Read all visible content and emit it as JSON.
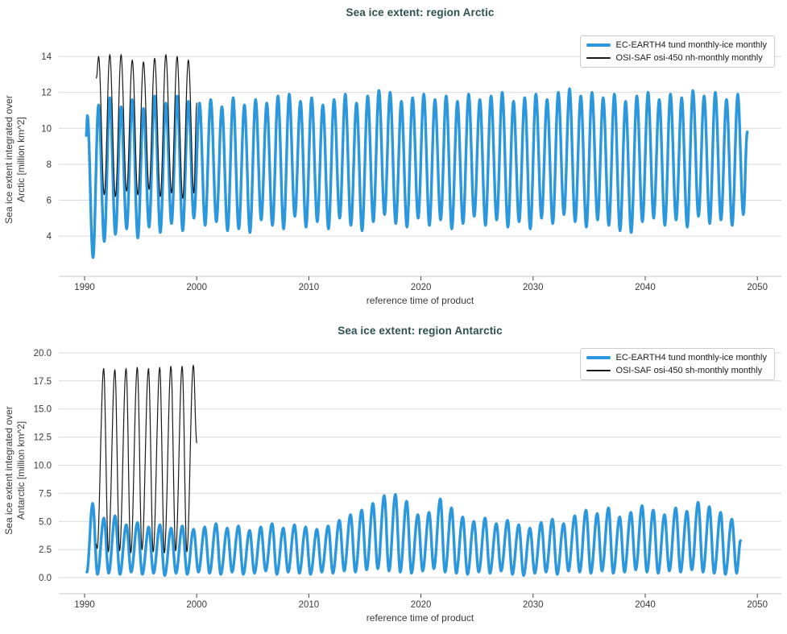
{
  "colors": {
    "title": "#2e5151",
    "tick_label": "#3a3a3a",
    "grid": "#d9d9d9",
    "axis_line": "#c9c9c9",
    "tick_mark": "#444444",
    "legend_border": "#cccccc",
    "blue_series": "#2b97dc",
    "black_series": "#1a1a1a"
  },
  "chart_data": [
    {
      "type": "line",
      "title": "Sea ice extent: region Arctic",
      "xlabel": "reference time of product",
      "ylabel_lines": [
        "Sea ice extent integrated over",
        "Arctic [million km^2]"
      ],
      "grid": "horizontal",
      "legend_position": "top-right",
      "x_range": [
        1987.7,
        2052.14
      ],
      "y_range": [
        1.76,
        14.81
      ],
      "x_ticks": {
        "values": [
          1990,
          2000,
          2010,
          2020,
          2030,
          2040,
          2050
        ],
        "labels": [
          "1990",
          "2000",
          "2010",
          "2020",
          "2030",
          "2040",
          "2050"
        ]
      },
      "y_ticks": {
        "values": [
          4,
          6,
          8,
          10,
          12,
          14
        ],
        "labels": [
          "4",
          "6",
          "8",
          "10",
          "12",
          "14"
        ]
      },
      "series": [
        {
          "name": "EC-EARTH4 tund monthly-ice monthly",
          "color": "#2b97dc",
          "width": 3.4,
          "order": "max-min",
          "max_phase": 0.25,
          "min_phase": 0.75,
          "start_year": 1990,
          "start": [
            1990.15,
            9.6
          ],
          "end": [
            2049.1,
            9.8
          ],
          "annual_max": [
            10.7,
            11.3,
            11.7,
            11.2,
            11.6,
            11.1,
            11.8,
            11.4,
            11.8,
            11.5,
            11.4,
            11.6,
            11.2,
            11.7,
            11.3,
            11.6,
            11.4,
            11.8,
            11.9,
            11.5,
            11.7,
            11.3,
            11.6,
            11.9,
            11.4,
            11.8,
            12.1,
            12.0,
            11.5,
            11.7,
            11.9,
            11.6,
            11.8,
            11.5,
            11.9,
            11.6,
            11.8,
            12.0,
            11.5,
            11.7,
            11.9,
            11.6,
            12.0,
            12.2,
            11.8,
            12.0,
            11.7,
            11.9,
            11.5,
            11.8,
            12.0,
            11.6,
            11.9,
            11.7,
            12.1,
            11.8,
            12.0,
            11.6,
            11.9
          ],
          "annual_min": [
            2.8,
            3.7,
            4.1,
            4.4,
            3.9,
            4.5,
            4.2,
            4.7,
            4.3,
            5.0,
            4.6,
            4.8,
            4.3,
            4.4,
            4.2,
            4.9,
            4.6,
            4.4,
            5.1,
            4.5,
            4.8,
            4.4,
            5.0,
            4.6,
            4.3,
            4.8,
            5.2,
            4.7,
            4.5,
            5.0,
            4.6,
            4.9,
            4.4,
            4.7,
            5.1,
            4.6,
            4.9,
            4.5,
            4.8,
            4.4,
            5.0,
            4.7,
            5.2,
            4.8,
            4.5,
            4.9,
            4.6,
            4.3,
            4.2,
            4.8,
            5.0,
            4.6,
            4.9,
            4.5,
            5.1,
            4.7,
            4.9,
            4.6,
            5.2
          ]
        },
        {
          "name": "OSI-SAF osi-450 nh-monthly monthly",
          "color": "#1a1a1a",
          "width": 1.2,
          "order": "max-min",
          "max_phase": 0.25,
          "min_phase": 0.75,
          "start_year": 1991,
          "start": [
            1991.05,
            12.8
          ],
          "end": [
            2000.0,
            11.4
          ],
          "annual_max": [
            14.0,
            14.1,
            14.1,
            13.8,
            13.7,
            13.9,
            14.1,
            14.0,
            13.8
          ],
          "annual_min": [
            6.3,
            6.2,
            6.5,
            6.3,
            6.6,
            6.2,
            6.4,
            6.1,
            6.4
          ]
        }
      ]
    },
    {
      "type": "line",
      "title": "Sea ice extent: region Antarctic",
      "xlabel": "reference time of product",
      "ylabel_lines": [
        "Sea ice extent integrated over",
        "Antarctic [million km^2]"
      ],
      "grid": "horizontal",
      "legend_position": "top-right",
      "x_range": [
        1987.7,
        2052.14
      ],
      "y_range": [
        -1.43,
        20.57
      ],
      "x_ticks": {
        "values": [
          1990,
          2000,
          2010,
          2020,
          2030,
          2040,
          2050
        ],
        "labels": [
          "1990",
          "2000",
          "2010",
          "2020",
          "2030",
          "2040",
          "2050"
        ]
      },
      "y_ticks": {
        "values": [
          0,
          2.5,
          5,
          7.5,
          10,
          12.5,
          15,
          17.5,
          20
        ],
        "labels": [
          "0.0",
          "2.5",
          "5.0",
          "7.5",
          "10.0",
          "12.5",
          "15.0",
          "17.5",
          "20.0"
        ]
      },
      "series": [
        {
          "name": "EC-EARTH4 tund monthly-ice monthly",
          "color": "#2b97dc",
          "width": 3.4,
          "order": "min-max",
          "min_phase": 0.15,
          "max_phase": 0.72,
          "start_year": 1990,
          "start": [
            1990.2,
            0.5
          ],
          "end": [
            2048.5,
            3.3
          ],
          "annual_max": [
            6.6,
            5.3,
            5.5,
            4.7,
            4.9,
            4.5,
            4.7,
            4.4,
            4.6,
            4.3,
            4.5,
            4.8,
            4.4,
            4.6,
            4.2,
            4.5,
            4.8,
            4.4,
            4.7,
            4.5,
            4.3,
            4.6,
            5.1,
            5.6,
            6.0,
            6.6,
            7.3,
            7.4,
            6.8,
            5.6,
            5.8,
            7.0,
            6.2,
            5.4,
            5.0,
            5.3,
            4.8,
            5.1,
            4.7,
            4.4,
            4.9,
            5.2,
            4.8,
            5.5,
            6.0,
            5.7,
            6.2,
            5.4,
            5.8,
            6.4,
            6.0,
            5.6,
            6.2,
            5.9,
            6.7,
            6.3,
            5.8,
            5.2,
            4.6
          ],
          "annual_min": [
            0.9,
            0.3,
            0.4,
            0.3,
            0.5,
            0.3,
            0.4,
            0.2,
            0.4,
            0.3,
            0.5,
            0.4,
            0.3,
            0.5,
            0.3,
            0.4,
            0.6,
            0.3,
            0.5,
            0.4,
            0.3,
            0.5,
            0.4,
            0.6,
            0.5,
            0.7,
            0.8,
            0.6,
            0.5,
            0.4,
            0.6,
            0.8,
            0.5,
            0.4,
            0.3,
            0.5,
            0.4,
            0.6,
            0.3,
            0.2,
            0.4,
            0.5,
            0.3,
            0.6,
            0.5,
            0.4,
            0.6,
            0.4,
            0.5,
            0.7,
            0.5,
            0.4,
            0.6,
            0.5,
            0.7,
            0.5,
            0.4,
            0.3,
            0.4
          ]
        },
        {
          "name": "OSI-SAF osi-450 sh-monthly monthly",
          "color": "#1a1a1a",
          "width": 1.2,
          "order": "min-max",
          "min_phase": 0.12,
          "max_phase": 0.7,
          "start_year": 1991,
          "start": [
            1991.02,
            3.0
          ],
          "end": [
            2000.0,
            12.0
          ],
          "annual_max": [
            18.6,
            18.5,
            18.6,
            18.7,
            18.6,
            18.7,
            18.8,
            18.8,
            18.9
          ],
          "annual_min": [
            2.6,
            2.3,
            2.4,
            2.2,
            2.5,
            2.3,
            2.2,
            2.4,
            2.3
          ]
        }
      ]
    }
  ]
}
